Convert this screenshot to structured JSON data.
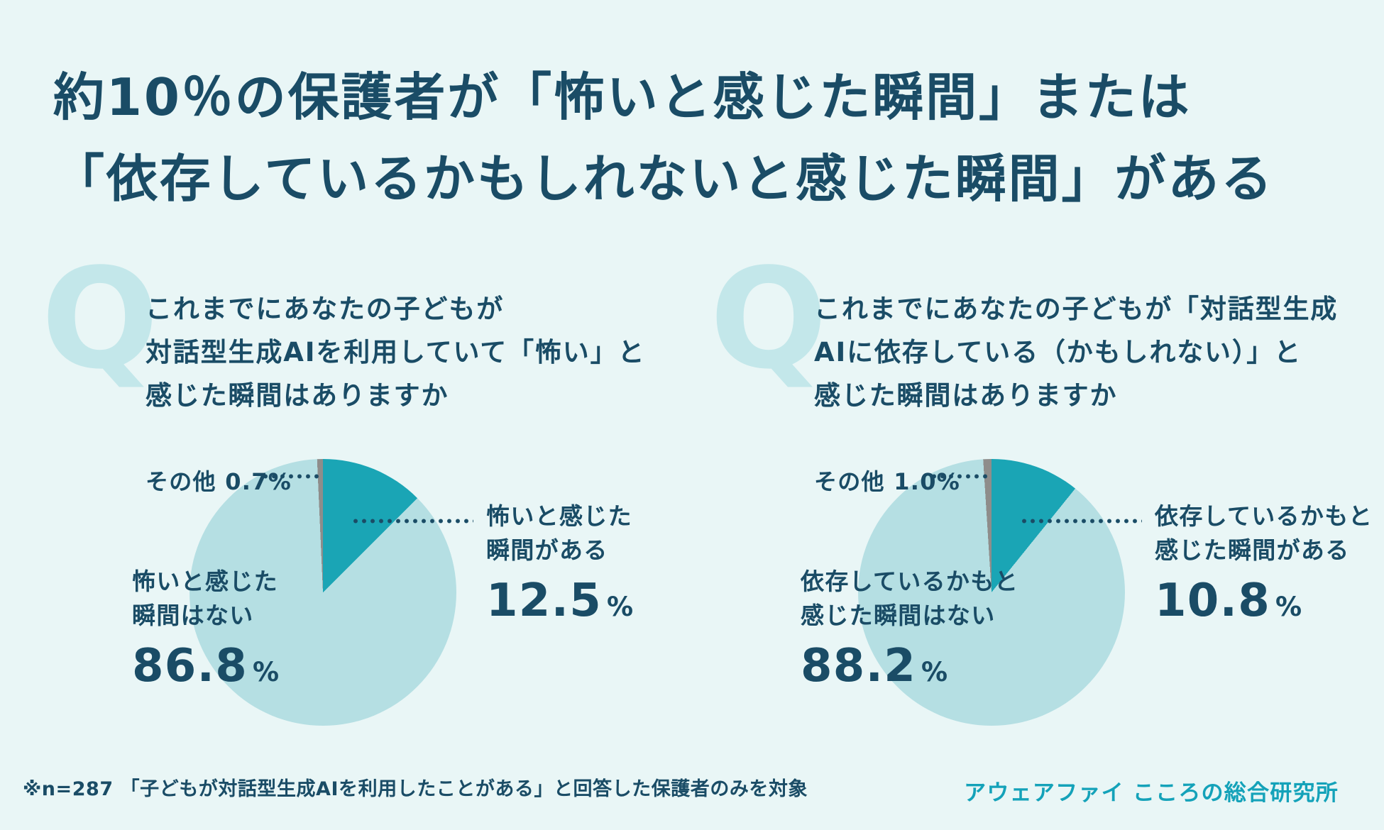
{
  "title": {
    "line1": "約10％の保護者が「怖いと感じた瞬間」または",
    "line2": "「依存しているかもしれないと感じた瞬間」がある"
  },
  "charts": [
    {
      "q_mark": "Q",
      "question": [
        "これまでにあなたの子どもが",
        "対話型生成AIを利用していて「怖い」と",
        "感じた瞬間はありますか"
      ],
      "labels": {
        "other": "その他 0.7%",
        "yes": {
          "line1": "怖いと感じた",
          "line2": "瞬間がある",
          "value": "12.5",
          "unit": "%"
        },
        "no": {
          "line1": "怖いと感じた",
          "line2": "瞬間はない",
          "value": "86.8",
          "unit": "%"
        }
      }
    },
    {
      "q_mark": "Q",
      "question": [
        "これまでにあなたの子どもが「対話型生成",
        "AIに依存している（かもしれない）」と",
        "感じた瞬間はありますか"
      ],
      "labels": {
        "other": "その他 1.0%",
        "yes": {
          "line1": "依存しているかもと",
          "line2": "感じた瞬間がある",
          "value": "10.8",
          "unit": "%"
        },
        "no": {
          "line1": "依存しているかもと",
          "line2": "感じた瞬間はない",
          "value": "88.2",
          "unit": "%"
        }
      }
    }
  ],
  "footer": {
    "note": "※n=287 「子どもが対話型生成AIを利用したことがある」と回答した保護者のみを対象",
    "brand": "アウェアファイ こころの総合研究所"
  },
  "colors": {
    "background": "#e9f6f6",
    "text_dark": "#1a4c66",
    "brand_teal": "#14a2b9",
    "q_watermark": "#c3e7ea",
    "slice_colors": [
      "#1aa5b5",
      "#b5dfe3",
      "#8e8d8b"
    ]
  },
  "chart_data": [
    {
      "type": "pie",
      "title": "これまでにあなたの子どもが対話型生成AIを利用していて「怖い」と感じた瞬間はありますか",
      "categories": [
        "怖いと感じた瞬間がある",
        "怖いと感じた瞬間はない",
        "その他"
      ],
      "values": [
        12.5,
        86.8,
        0.7
      ],
      "unit": "%",
      "slice_colors": [
        "#1aa5b5",
        "#b5dfe3",
        "#8e8d8b"
      ],
      "start_angle_deg": 0,
      "direction": "clockwise",
      "legend_position": "callout-labels"
    },
    {
      "type": "pie",
      "title": "これまでにあなたの子どもが「対話型生成AIに依存している（かもしれない）」と感じた瞬間はありますか",
      "categories": [
        "依存しているかもと感じた瞬間がある",
        "依存しているかもと感じた瞬間はない",
        "その他"
      ],
      "values": [
        10.8,
        88.2,
        1.0
      ],
      "unit": "%",
      "slice_colors": [
        "#1aa5b5",
        "#b5dfe3",
        "#8e8d8b"
      ],
      "start_angle_deg": 0,
      "direction": "clockwise",
      "legend_position": "callout-labels"
    }
  ]
}
